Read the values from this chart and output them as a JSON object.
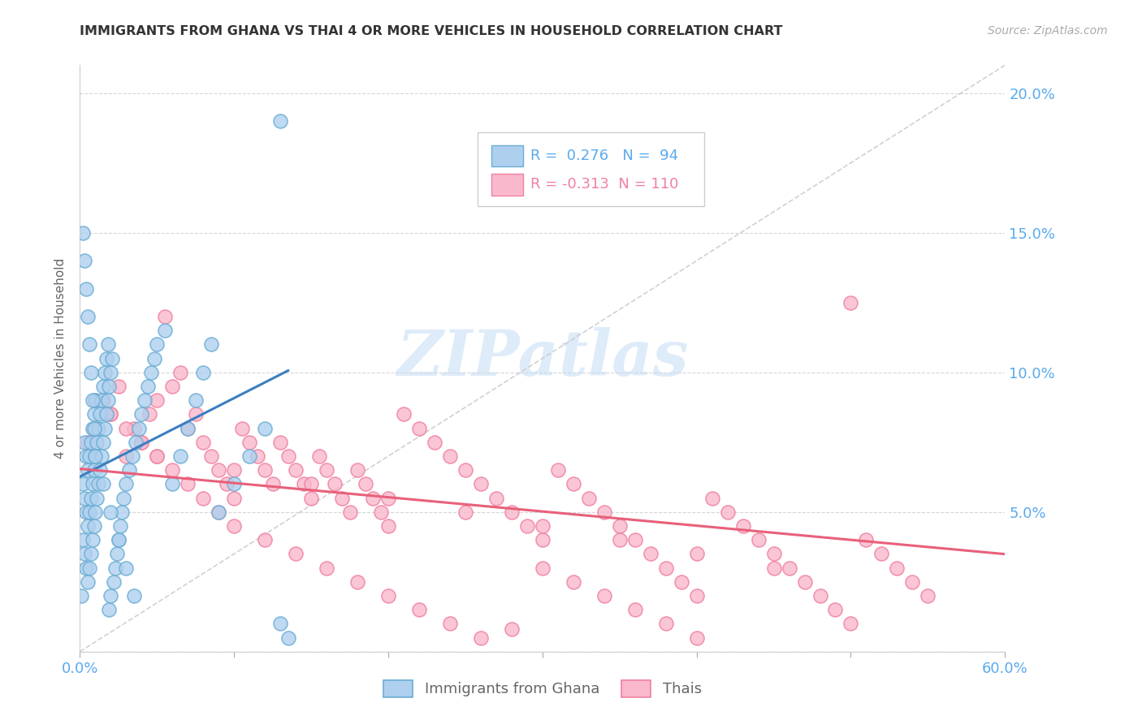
{
  "title": "IMMIGRANTS FROM GHANA VS THAI 4 OR MORE VEHICLES IN HOUSEHOLD CORRELATION CHART",
  "source": "Source: ZipAtlas.com",
  "ylabel": "4 or more Vehicles in Household",
  "xlim": [
    0.0,
    0.6
  ],
  "ylim": [
    0.0,
    0.21
  ],
  "ghana_color": "#aed0ee",
  "thai_color": "#f9b8cb",
  "ghana_edge": "#6aadd5",
  "thai_edge": "#f080a0",
  "ghana_line_color": "#3a7fc1",
  "thai_line_color": "#e8607a",
  "ghana_R": 0.276,
  "ghana_N": 94,
  "thai_R": -0.313,
  "thai_N": 110,
  "tick_label_color": "#5aaaee",
  "ylabel_color": "#888888",
  "legend_label1": "Immigrants from Ghana",
  "legend_label2": "Thais",
  "ghana_x": [
    0.001,
    0.002,
    0.002,
    0.003,
    0.003,
    0.003,
    0.004,
    0.004,
    0.004,
    0.005,
    0.005,
    0.005,
    0.006,
    0.006,
    0.006,
    0.007,
    0.007,
    0.007,
    0.008,
    0.008,
    0.008,
    0.009,
    0.009,
    0.009,
    0.01,
    0.01,
    0.01,
    0.011,
    0.011,
    0.012,
    0.012,
    0.013,
    0.013,
    0.014,
    0.014,
    0.015,
    0.015,
    0.016,
    0.016,
    0.017,
    0.017,
    0.018,
    0.018,
    0.019,
    0.019,
    0.02,
    0.02,
    0.021,
    0.022,
    0.023,
    0.024,
    0.025,
    0.026,
    0.027,
    0.028,
    0.03,
    0.032,
    0.034,
    0.036,
    0.038,
    0.04,
    0.042,
    0.044,
    0.046,
    0.048,
    0.05,
    0.055,
    0.06,
    0.065,
    0.07,
    0.075,
    0.08,
    0.085,
    0.09,
    0.1,
    0.11,
    0.12,
    0.13,
    0.002,
    0.003,
    0.004,
    0.005,
    0.006,
    0.007,
    0.008,
    0.009,
    0.01,
    0.015,
    0.02,
    0.025,
    0.03,
    0.035,
    0.13,
    0.135
  ],
  "ghana_y": [
    0.02,
    0.04,
    0.06,
    0.035,
    0.055,
    0.075,
    0.03,
    0.05,
    0.07,
    0.025,
    0.045,
    0.065,
    0.03,
    0.05,
    0.07,
    0.035,
    0.055,
    0.075,
    0.04,
    0.06,
    0.08,
    0.045,
    0.065,
    0.085,
    0.05,
    0.07,
    0.09,
    0.055,
    0.075,
    0.06,
    0.08,
    0.065,
    0.085,
    0.07,
    0.09,
    0.075,
    0.095,
    0.08,
    0.1,
    0.085,
    0.105,
    0.09,
    0.11,
    0.095,
    0.015,
    0.1,
    0.02,
    0.105,
    0.025,
    0.03,
    0.035,
    0.04,
    0.045,
    0.05,
    0.055,
    0.06,
    0.065,
    0.07,
    0.075,
    0.08,
    0.085,
    0.09,
    0.095,
    0.1,
    0.105,
    0.11,
    0.115,
    0.06,
    0.07,
    0.08,
    0.09,
    0.1,
    0.11,
    0.05,
    0.06,
    0.07,
    0.08,
    0.01,
    0.15,
    0.14,
    0.13,
    0.12,
    0.11,
    0.1,
    0.09,
    0.08,
    0.07,
    0.06,
    0.05,
    0.04,
    0.03,
    0.02,
    0.19,
    0.005
  ],
  "thai_x": [
    0.005,
    0.01,
    0.015,
    0.02,
    0.025,
    0.03,
    0.035,
    0.04,
    0.045,
    0.05,
    0.055,
    0.06,
    0.065,
    0.07,
    0.075,
    0.08,
    0.085,
    0.09,
    0.095,
    0.1,
    0.105,
    0.11,
    0.115,
    0.12,
    0.125,
    0.13,
    0.135,
    0.14,
    0.145,
    0.15,
    0.155,
    0.16,
    0.165,
    0.17,
    0.175,
    0.18,
    0.185,
    0.19,
    0.195,
    0.2,
    0.21,
    0.22,
    0.23,
    0.24,
    0.25,
    0.26,
    0.27,
    0.28,
    0.29,
    0.3,
    0.31,
    0.32,
    0.33,
    0.34,
    0.35,
    0.36,
    0.37,
    0.38,
    0.39,
    0.4,
    0.41,
    0.42,
    0.43,
    0.44,
    0.45,
    0.46,
    0.47,
    0.48,
    0.49,
    0.5,
    0.51,
    0.52,
    0.53,
    0.54,
    0.55,
    0.01,
    0.02,
    0.03,
    0.04,
    0.05,
    0.06,
    0.07,
    0.08,
    0.09,
    0.1,
    0.12,
    0.14,
    0.16,
    0.18,
    0.2,
    0.22,
    0.24,
    0.26,
    0.28,
    0.3,
    0.32,
    0.34,
    0.36,
    0.38,
    0.4,
    0.05,
    0.1,
    0.15,
    0.2,
    0.25,
    0.3,
    0.35,
    0.4,
    0.45,
    0.5
  ],
  "thai_y": [
    0.075,
    0.08,
    0.09,
    0.085,
    0.095,
    0.07,
    0.08,
    0.075,
    0.085,
    0.09,
    0.12,
    0.095,
    0.1,
    0.08,
    0.085,
    0.075,
    0.07,
    0.065,
    0.06,
    0.055,
    0.08,
    0.075,
    0.07,
    0.065,
    0.06,
    0.075,
    0.07,
    0.065,
    0.06,
    0.055,
    0.07,
    0.065,
    0.06,
    0.055,
    0.05,
    0.065,
    0.06,
    0.055,
    0.05,
    0.045,
    0.085,
    0.08,
    0.075,
    0.07,
    0.065,
    0.06,
    0.055,
    0.05,
    0.045,
    0.04,
    0.065,
    0.06,
    0.055,
    0.05,
    0.045,
    0.04,
    0.035,
    0.03,
    0.025,
    0.02,
    0.055,
    0.05,
    0.045,
    0.04,
    0.035,
    0.03,
    0.025,
    0.02,
    0.015,
    0.01,
    0.04,
    0.035,
    0.03,
    0.025,
    0.02,
    0.09,
    0.085,
    0.08,
    0.075,
    0.07,
    0.065,
    0.06,
    0.055,
    0.05,
    0.045,
    0.04,
    0.035,
    0.03,
    0.025,
    0.02,
    0.015,
    0.01,
    0.005,
    0.008,
    0.03,
    0.025,
    0.02,
    0.015,
    0.01,
    0.005,
    0.07,
    0.065,
    0.06,
    0.055,
    0.05,
    0.045,
    0.04,
    0.035,
    0.03,
    0.125
  ]
}
